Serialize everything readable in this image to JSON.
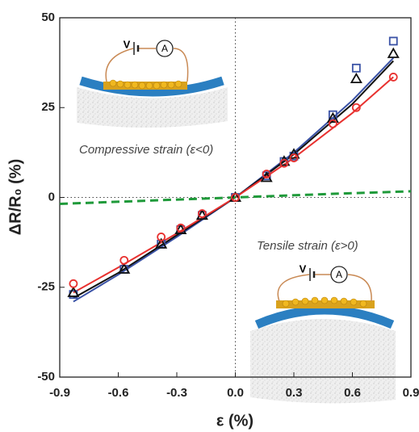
{
  "chart_data": {
    "type": "scatter",
    "xlabel": "ε (%)",
    "ylabel": "ΔR/R₀ (%)",
    "annotations": [
      "Compressive strain (ε<0)",
      "Tensile strain (ε>0)"
    ],
    "insets": [
      {
        "battery_label": "V",
        "meter_label": "A"
      },
      {
        "battery_label": "V",
        "meter_label": "A"
      }
    ],
    "xlim": [
      -0.9,
      0.9
    ],
    "xticks": [
      -0.9,
      -0.6,
      -0.3,
      {
        "value": 0,
        "label": "0.0"
      },
      0.3,
      0.6,
      0.9
    ],
    "ylim": [
      -50,
      50
    ],
    "yticks": [
      -50,
      -25,
      0,
      25,
      50
    ],
    "series": [
      {
        "type": "scatter",
        "marker": "square",
        "color": "#3a52a6",
        "x": [
          -0.83,
          -0.57,
          -0.38,
          -0.28,
          -0.17,
          0,
          0.16,
          0.25,
          0.3,
          0.5,
          0.62,
          0.81
        ],
        "values": [
          -27,
          -20,
          -13,
          -9,
          -5,
          0,
          6,
          10,
          11.5,
          23,
          36,
          43.5
        ]
      },
      {
        "type": "scatter",
        "marker": "triangle",
        "color": "#111111",
        "x": [
          -0.83,
          -0.57,
          -0.38,
          -0.28,
          -0.17,
          0,
          0.16,
          0.25,
          0.3,
          0.5,
          0.62,
          0.81
        ],
        "values": [
          -26.5,
          -20,
          -13,
          -9,
          -5,
          0,
          5.5,
          10,
          12,
          22,
          33,
          40
        ]
      },
      {
        "type": "scatter",
        "marker": "circle",
        "color": "#e8312f",
        "x": [
          -0.83,
          -0.57,
          -0.38,
          -0.28,
          -0.17,
          0,
          0.16,
          0.25,
          0.3,
          0.5,
          0.62,
          0.81
        ],
        "values": [
          -24,
          -17.5,
          -11,
          -8.5,
          -4.5,
          0,
          6.5,
          9.5,
          11,
          20.5,
          25,
          33.5
        ]
      },
      {
        "type": "line",
        "color": "#3a52a6",
        "x": [
          -0.83,
          -0.6,
          -0.3,
          0,
          0.3,
          0.6,
          0.81
        ],
        "values": [
          -29,
          -21.5,
          -11,
          0,
          12.5,
          27,
          38.8
        ]
      },
      {
        "type": "line",
        "color": "#111111",
        "x": [
          -0.83,
          -0.6,
          -0.3,
          0,
          0.3,
          0.6,
          0.81
        ],
        "values": [
          -28,
          -21,
          -10.5,
          0,
          12,
          26,
          38
        ]
      },
      {
        "type": "line",
        "color": "#e8312f",
        "x": [
          -0.83,
          -0.6,
          -0.3,
          0,
          0.3,
          0.6,
          0.81
        ],
        "values": [
          -26.5,
          -19.5,
          -10,
          0,
          11,
          23.5,
          33.5
        ]
      },
      {
        "type": "line",
        "dashed": true,
        "color": "#1f9a3a",
        "x": [
          -0.9,
          -0.5,
          0,
          0.5,
          0.9
        ],
        "values": [
          -1.8,
          -1,
          0,
          1,
          1.7
        ]
      }
    ]
  }
}
